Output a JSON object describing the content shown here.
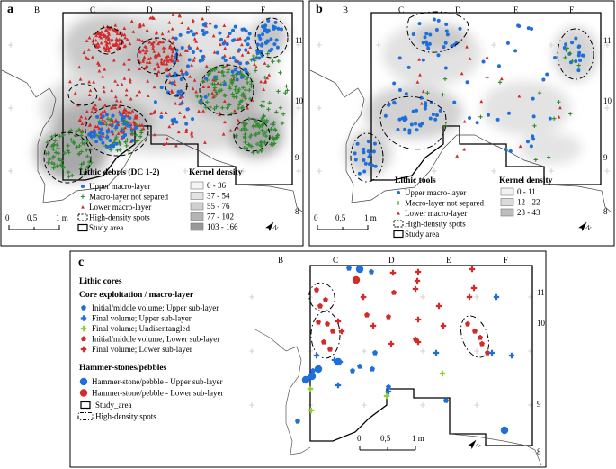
{
  "panels": [
    {
      "id": "a",
      "letter": "a",
      "title": "Lithic debris (DC 1-2)",
      "grid_cols": [
        "B",
        "C",
        "D",
        "E",
        "F"
      ],
      "grid_rows": [
        "11",
        "10",
        "9",
        "8"
      ],
      "legend": [
        {
          "label": "Upper macro-layer",
          "symbol": "dot",
          "color": "#1e6fd9"
        },
        {
          "label": "Macro-layer not separed",
          "symbol": "plus",
          "color": "#2e8b2e"
        },
        {
          "label": "Lower macro-layer",
          "symbol": "triangle",
          "color": "#d42a2a"
        },
        {
          "label": "High-density spots",
          "symbol": "dashed-box"
        },
        {
          "label": "Study area",
          "symbol": "solid-box"
        }
      ],
      "density_title": "Kernel density",
      "density_classes": [
        "0 - 36",
        "37 - 54",
        "55 - 76",
        "77 - 102",
        "103 - 166"
      ],
      "density_colors": [
        "#f4f4f4",
        "#e4e4e4",
        "#cfcfcf",
        "#b5b5b5",
        "#999999"
      ],
      "scale_labels": [
        "0",
        "0,5",
        "1 m"
      ],
      "north": "N"
    },
    {
      "id": "b",
      "letter": "b",
      "title": "Lithic tools",
      "grid_cols": [
        "B",
        "C",
        "D",
        "E",
        "F"
      ],
      "grid_rows": [
        "11",
        "10",
        "9",
        "8"
      ],
      "legend": [
        {
          "label": "Upper macro-layer",
          "symbol": "dot",
          "color": "#1e6fd9"
        },
        {
          "label": "Macro-layer not separed",
          "symbol": "plus",
          "color": "#2e8b2e"
        },
        {
          "label": "Lower macro-layer",
          "symbol": "triangle",
          "color": "#d42a2a"
        },
        {
          "label": "High-density spots",
          "symbol": "dashed-box"
        },
        {
          "label": "Study area",
          "symbol": "solid-box"
        }
      ],
      "density_title": "Kernel density",
      "density_classes": [
        "0 - 11",
        "12 - 22",
        "23 - 43"
      ],
      "density_colors": [
        "#f2f2f2",
        "#dadada",
        "#bdbdbd"
      ],
      "scale_labels": [
        "0",
        "0,5",
        "1 m"
      ],
      "north": "N"
    },
    {
      "id": "c",
      "letter": "c",
      "title": "Lithic cores",
      "subtitle": "Core exploitation / macro-layer",
      "hammer_title": "Hammer-stones/pebbles",
      "grid_cols": [
        "B",
        "C",
        "D",
        "E",
        "F"
      ],
      "grid_rows": [
        "11",
        "10",
        "9",
        "8"
      ],
      "core_legend": [
        {
          "label": "Initial/middle volume; Upper sub-layer",
          "symbol": "pentagon",
          "color": "#1e6fd9"
        },
        {
          "label": "Final volume; Upper sub-layer",
          "symbol": "cross",
          "color": "#1e6fd9"
        },
        {
          "label": "Final volume; Undisentangled",
          "symbol": "cross",
          "color": "#8fcf3a"
        },
        {
          "label": "Initial/middle volume; Lower sub-layer",
          "symbol": "pentagon",
          "color": "#d42a2a"
        },
        {
          "label": "Final volume; Lower sub-layer",
          "symbol": "cross",
          "color": "#d42a2a"
        }
      ],
      "hammer_legend": [
        {
          "label": "Hammer-stone/pebble - Upper sub-layer",
          "symbol": "bigdot",
          "color": "#1e6fd9"
        },
        {
          "label": "Hammer-stone/pebble - Lower sub-layer",
          "symbol": "bigdot",
          "color": "#d42a2a"
        }
      ],
      "area_legend": [
        {
          "label": "Study_area",
          "symbol": "solid-box"
        },
        {
          "label": "High-density spots",
          "symbol": "dashdot-box"
        }
      ],
      "scale_labels": [
        "0",
        "0,5",
        "1 m"
      ],
      "north": "N"
    }
  ],
  "colors": {
    "upper": "#1e6fd9",
    "mixed": "#2e8b2e",
    "lower": "#d42a2a",
    "undisentangled": "#8fcf3a"
  }
}
